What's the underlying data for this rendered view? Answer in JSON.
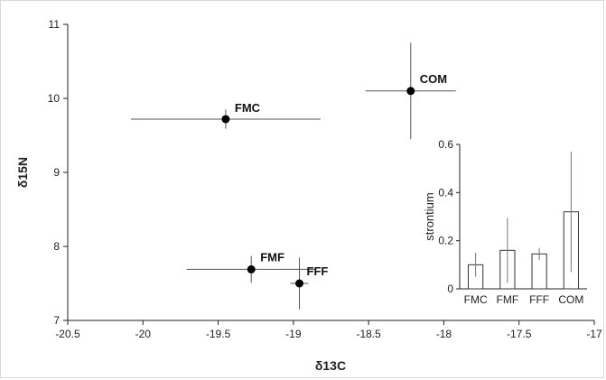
{
  "chart_data": [
    {
      "type": "scatter",
      "title": "",
      "xlabel": "δ13C",
      "ylabel": "δ15N",
      "xlim": [
        -20.5,
        -17
      ],
      "ylim": [
        7,
        11
      ],
      "x_ticks": [
        "-20.5",
        "-20",
        "-19.5",
        "-19",
        "-18.5",
        "-18",
        "-17.5",
        "-17"
      ],
      "y_ticks": [
        "7",
        "8",
        "9",
        "10",
        "11"
      ],
      "grid": false,
      "points": [
        {
          "label": "FMC",
          "x": -19.45,
          "y": 9.72,
          "xerr": 0.63,
          "yerr": 0.13
        },
        {
          "label": "COM",
          "x": -18.22,
          "y": 10.1,
          "xerr": 0.3,
          "yerr": 0.65
        },
        {
          "label": "FMF",
          "x": -19.28,
          "y": 7.69,
          "xerr": 0.43,
          "yerr": 0.18
        },
        {
          "label": "FFF",
          "x": -18.96,
          "y": 7.5,
          "xerr": 0.06,
          "yerr": 0.35
        }
      ]
    },
    {
      "type": "bar",
      "title": "",
      "xlabel": "",
      "ylabel": "strontium",
      "ylim": [
        0,
        0.6
      ],
      "y_ticks": [
        "0",
        "0.2",
        "0.4",
        "0.6"
      ],
      "categories": [
        "FMC",
        "FMF",
        "FFF",
        "COM"
      ],
      "values": [
        0.1,
        0.16,
        0.145,
        0.32
      ],
      "errors": [
        0.05,
        0.135,
        0.025,
        0.25
      ]
    }
  ]
}
